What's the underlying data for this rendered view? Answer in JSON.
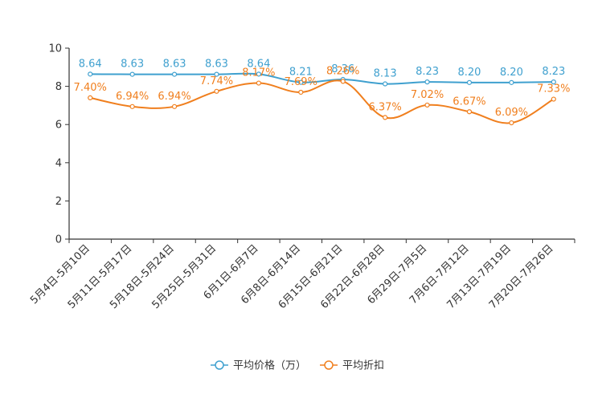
{
  "chart_data": {
    "type": "line",
    "title": "",
    "xlabel": "",
    "ylabel": "",
    "ylim": [
      0,
      10
    ],
    "yticks": [
      0,
      2,
      4,
      6,
      8,
      10
    ],
    "smooth": true,
    "legend_position": "bottom-center",
    "categories": [
      "5月4日-5月10日",
      "5月11日-5月17日",
      "5月18日-5月24日",
      "5月25日-5月31日",
      "6月1日-6月7日",
      "6月8日-6月14日",
      "6月15日-6月21日",
      "6月22日-6月28日",
      "6月29日-7月5日",
      "7月6日-7月12日",
      "7月13日-7月19日",
      "7月20日-7月26日"
    ],
    "series": [
      {
        "name": "平均价格（万）",
        "color": "#3fa0cf",
        "values": [
          8.64,
          8.63,
          8.63,
          8.63,
          8.64,
          8.21,
          8.36,
          8.13,
          8.23,
          8.2,
          8.2,
          8.23
        ],
        "labels": [
          "8.64",
          "8.63",
          "8.63",
          "8.63",
          "8.64",
          "8.21",
          "8.36",
          "8.13",
          "8.23",
          "8.20",
          "8.20",
          "8.23"
        ]
      },
      {
        "name": "平均折扣",
        "color": "#f07f1e",
        "values": [
          7.4,
          6.94,
          6.94,
          7.74,
          8.17,
          7.69,
          8.26,
          6.37,
          7.02,
          6.67,
          6.09,
          7.33
        ],
        "labels": [
          "7.40%",
          "6.94%",
          "6.94%",
          "7.74%",
          "8.17%",
          "7.69%",
          "8.26%",
          "6.37%",
          "7.02%",
          "6.67%",
          "6.09%",
          "7.33%"
        ]
      }
    ]
  }
}
